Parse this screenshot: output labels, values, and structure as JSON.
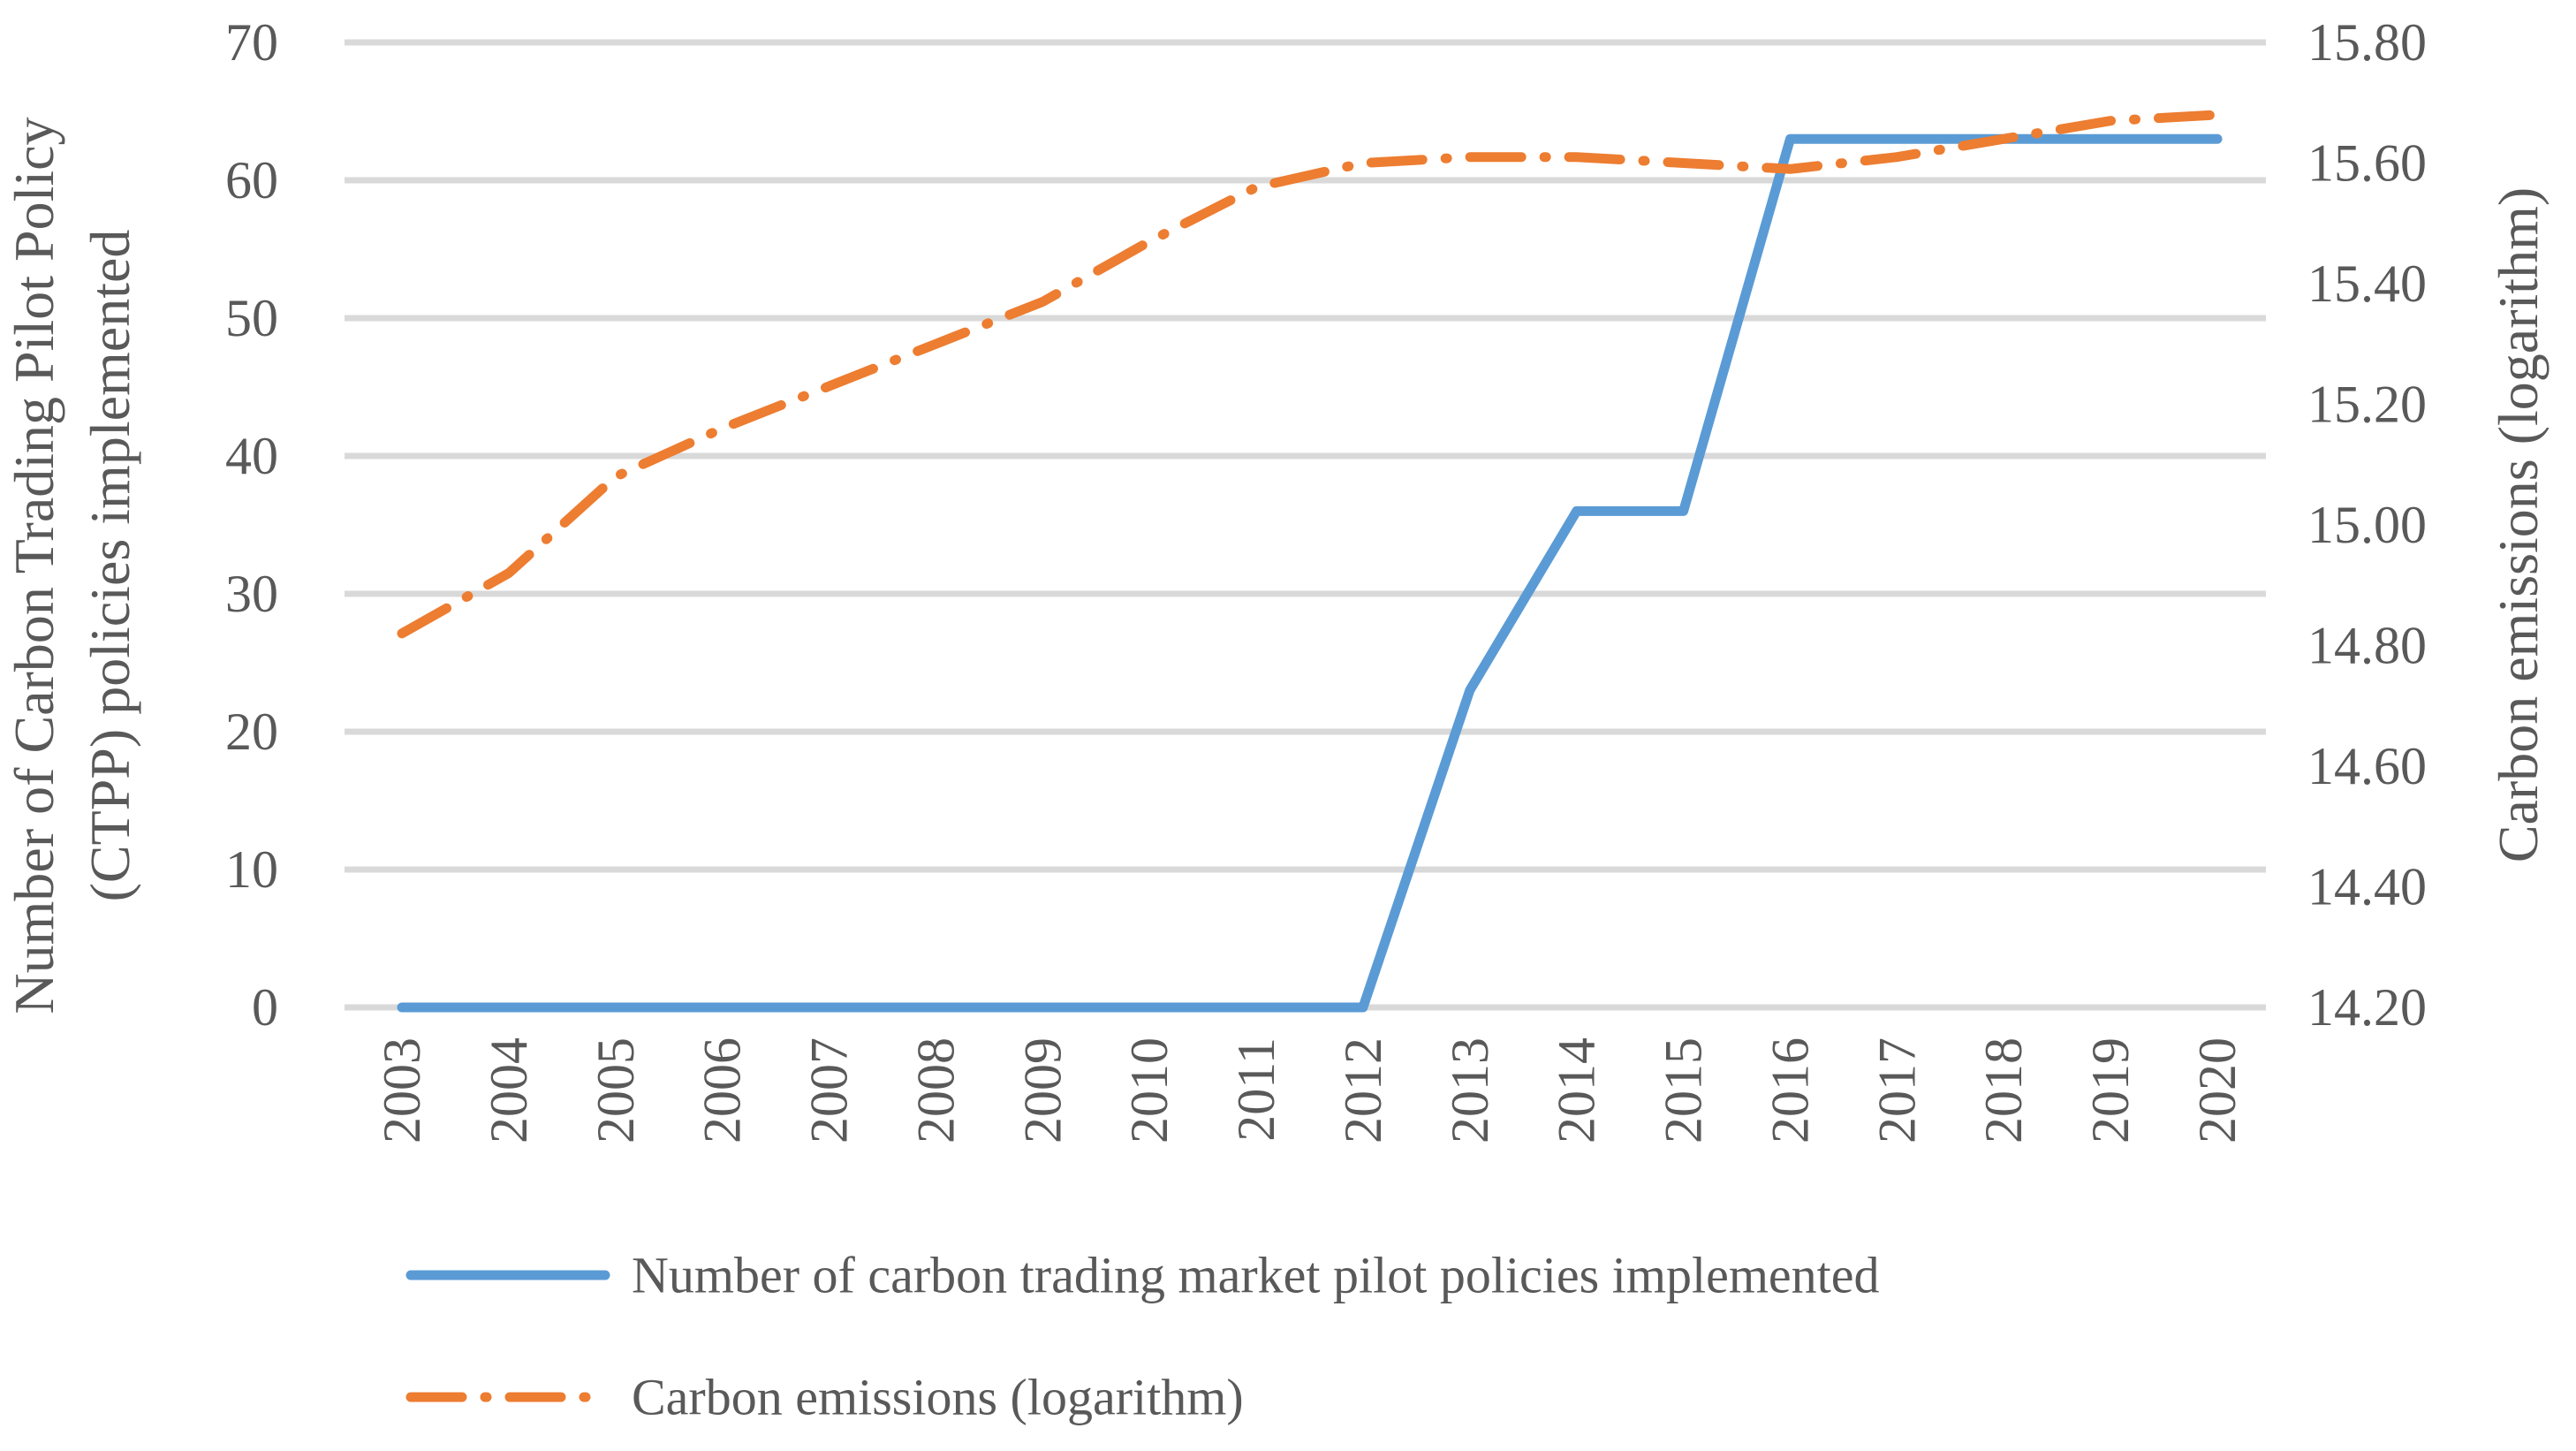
{
  "chart_data": {
    "type": "line",
    "dual_axis": true,
    "grid": "horizontal",
    "legend_position": "bottom-left",
    "categories": [
      "2003",
      "2004",
      "2005",
      "2006",
      "2007",
      "2008",
      "2009",
      "2010",
      "2011",
      "2012",
      "2013",
      "2014",
      "2015",
      "2016",
      "2017",
      "2018",
      "2019",
      "2020"
    ],
    "series": [
      {
        "name": "Number of carbon trading market pilot policies implemented",
        "axis": "left",
        "style": "solid",
        "color": "#5B9BD5",
        "values": [
          0,
          0,
          0,
          0,
          0,
          0,
          0,
          0,
          0,
          0,
          23,
          36,
          36,
          63,
          63,
          63,
          63,
          63
        ]
      },
      {
        "name": "Carbon emissions (logarithm)",
        "axis": "right",
        "style": "dash-dot",
        "color": "#ED7D31",
        "values": [
          14.82,
          14.92,
          15.08,
          15.16,
          15.23,
          15.3,
          15.37,
          15.47,
          15.56,
          15.6,
          15.61,
          15.61,
          15.6,
          15.59,
          15.61,
          15.64,
          15.67,
          15.68
        ]
      }
    ],
    "left_axis": {
      "label_line1": "Number of Carbon Trading Pilot Policy",
      "label_line2": "(CTPP) policies implemented",
      "min": 0,
      "max": 70,
      "tick_step": 10,
      "tick_labels": [
        "0",
        "10",
        "20",
        "30",
        "40",
        "50",
        "60",
        "70"
      ]
    },
    "right_axis": {
      "label": "Carbon emissions (logarithm)",
      "min": 14.2,
      "max": 15.8,
      "tick_step": 0.2,
      "tick_labels": [
        "14.20",
        "14.40",
        "14.60",
        "14.80",
        "15.00",
        "15.20",
        "15.40",
        "15.60",
        "15.80"
      ]
    },
    "colors": {
      "policies_line": "#5B9BD5",
      "emissions_line": "#ED7D31",
      "gridline": "#D9D9D9",
      "axis_text": "#595959",
      "background": "#FFFFFF"
    }
  }
}
